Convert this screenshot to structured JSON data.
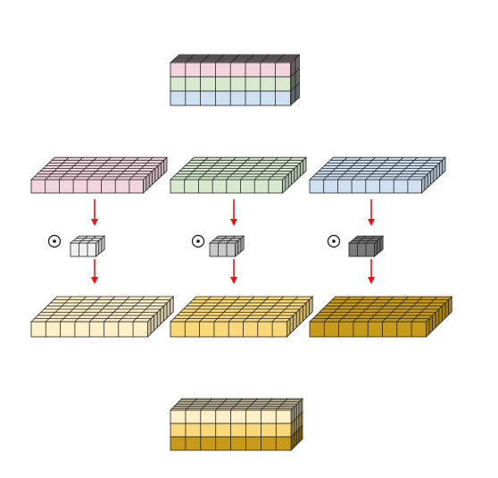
{
  "colors": {
    "pink": "#f2d4df",
    "green": "#d8e9cf",
    "blue": "#cfe0f2",
    "light_yellow": "#fdf0c8",
    "yellow": "#f8d878",
    "dark_yellow": "#c89a1a",
    "kernel_white": "#f0f0f0",
    "kernel_light_gray": "#c8c8c8",
    "kernel_dark_gray": "#7a7a7a",
    "arrow": "#e8141a",
    "outline": "#222222"
  },
  "operator_symbol": "⊙",
  "diagram": {
    "input_stack": {
      "icon": "stacked-3-channel-input",
      "layers": [
        "blue",
        "green",
        "pink"
      ]
    },
    "channel_slices": [
      {
        "channel": "pink",
        "kernel": "kernel_white",
        "output": "light_yellow"
      },
      {
        "channel": "green",
        "kernel": "kernel_light_gray",
        "output": "yellow"
      },
      {
        "channel": "blue",
        "kernel": "kernel_dark_gray",
        "output": "dark_yellow"
      }
    ],
    "output_stack": {
      "icon": "stacked-3-channel-output",
      "layers": [
        "dark_yellow",
        "yellow",
        "light_yellow"
      ]
    }
  }
}
